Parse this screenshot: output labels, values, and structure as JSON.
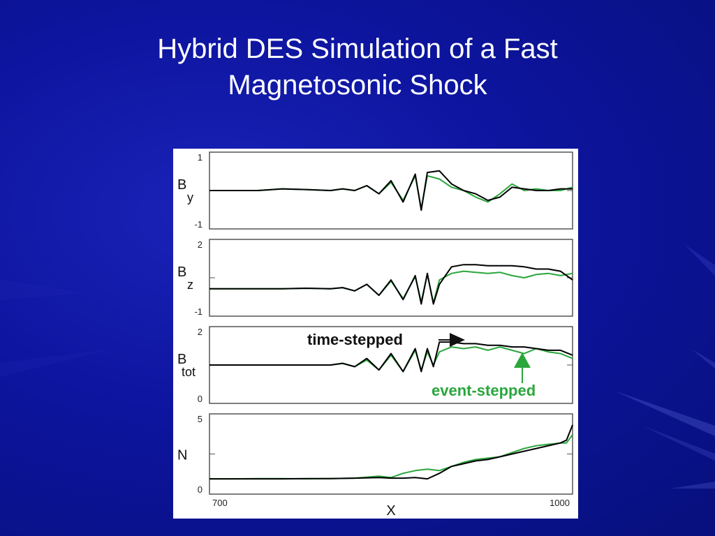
{
  "slide": {
    "title_line1": "Hybrid DES Simulation of a Fast",
    "title_line2": "Magnetosonic Shock"
  },
  "colors": {
    "background": "#0d149e",
    "time_stepped": "#000000",
    "event_stepped": "#2aa63c"
  },
  "chart_data": {
    "type": "line",
    "xlabel": "X",
    "xlim": [
      700,
      1000
    ],
    "x_ticks": [
      "700",
      "1000"
    ],
    "panels": [
      {
        "id": "by",
        "ylabel_main": "B",
        "ylabel_sub": "y",
        "ylim": [
          -1,
          1
        ],
        "y_ticks": [
          "1",
          "-1"
        ],
        "series": [
          {
            "x": [
              700,
              720,
              740,
              760,
              780,
              800,
              810,
              820,
              830,
              840,
              850,
              860,
              870,
              875,
              880,
              890,
              900,
              910,
              920,
              930,
              940,
              950,
              960,
              970,
              980,
              990,
              1000
            ],
            "y": [
              0,
              0,
              0,
              0.05,
              0.03,
              0,
              0.05,
              0,
              0.15,
              -0.1,
              0.3,
              -0.35,
              0.5,
              -0.6,
              0.55,
              0.6,
              0.2,
              0,
              -0.1,
              -0.3,
              -0.2,
              0.1,
              0.05,
              0,
              0,
              0.05,
              0.05
            ]
          },
          {
            "x": [
              700,
              720,
              740,
              760,
              780,
              800,
              810,
              820,
              830,
              840,
              850,
              860,
              870,
              875,
              880,
              890,
              900,
              910,
              920,
              930,
              940,
              950,
              960,
              970,
              980,
              990,
              1000
            ],
            "y": [
              0,
              0,
              0,
              0.05,
              0.03,
              0,
              0.05,
              0,
              0.15,
              -0.1,
              0.25,
              -0.3,
              0.45,
              -0.55,
              0.45,
              0.35,
              0.1,
              0,
              -0.2,
              -0.35,
              -0.1,
              0.2,
              0,
              0.05,
              0,
              0,
              0.1
            ]
          }
        ]
      },
      {
        "id": "bz",
        "ylabel_main": "B",
        "ylabel_sub": "z",
        "ylim": [
          -1,
          2
        ],
        "y_ticks": [
          "2",
          "-1"
        ],
        "series": [
          {
            "x": [
              700,
              720,
              740,
              760,
              780,
              800,
              810,
              820,
              830,
              840,
              850,
              860,
              870,
              875,
              880,
              885,
              890,
              900,
              910,
              920,
              930,
              940,
              950,
              960,
              970,
              980,
              990,
              1000
            ],
            "y": [
              0,
              0,
              0,
              0,
              0.02,
              0,
              0.05,
              -0.1,
              0.2,
              -0.3,
              0.4,
              -0.5,
              0.6,
              -0.7,
              0.7,
              -0.7,
              0.2,
              1.0,
              1.1,
              1.1,
              1.05,
              1.05,
              1.05,
              1.0,
              0.9,
              0.9,
              0.8,
              0.4
            ]
          },
          {
            "x": [
              700,
              720,
              740,
              760,
              780,
              800,
              810,
              820,
              830,
              840,
              850,
              860,
              870,
              875,
              880,
              885,
              890,
              900,
              910,
              920,
              930,
              940,
              950,
              960,
              970,
              980,
              990,
              1000
            ],
            "y": [
              0,
              0,
              0,
              0,
              0.02,
              0,
              0.05,
              -0.1,
              0.2,
              -0.3,
              0.35,
              -0.45,
              0.55,
              -0.6,
              0.65,
              -0.65,
              0.4,
              0.7,
              0.8,
              0.75,
              0.7,
              0.75,
              0.6,
              0.5,
              0.65,
              0.7,
              0.6,
              0.7
            ]
          }
        ]
      },
      {
        "id": "btot",
        "ylabel_main": "B",
        "ylabel_sub": "tot",
        "ylim": [
          0,
          2
        ],
        "y_ticks": [
          "2",
          "0"
        ],
        "series": [
          {
            "x": [
              700,
              720,
              740,
              760,
              780,
              800,
              810,
              820,
              830,
              840,
              850,
              860,
              870,
              875,
              880,
              885,
              890,
              900,
              910,
              920,
              930,
              940,
              950,
              960,
              970,
              980,
              990,
              1000
            ],
            "y": [
              1,
              1,
              1,
              1,
              1,
              1,
              1.05,
              0.95,
              1.2,
              0.85,
              1.35,
              0.8,
              1.5,
              0.8,
              1.5,
              0.95,
              1.7,
              1.7,
              1.65,
              1.65,
              1.6,
              1.6,
              1.55,
              1.55,
              1.5,
              1.45,
              1.45,
              1.3
            ]
          },
          {
            "x": [
              700,
              720,
              740,
              760,
              780,
              800,
              810,
              820,
              830,
              840,
              850,
              860,
              870,
              875,
              880,
              885,
              890,
              900,
              910,
              920,
              930,
              940,
              950,
              960,
              970,
              980,
              990,
              1000
            ],
            "y": [
              1,
              1,
              1,
              1,
              1,
              1,
              1.05,
              0.95,
              1.15,
              0.85,
              1.3,
              0.8,
              1.45,
              0.85,
              1.4,
              1.0,
              1.4,
              1.55,
              1.5,
              1.55,
              1.45,
              1.55,
              1.45,
              1.35,
              1.5,
              1.4,
              1.35,
              1.2
            ]
          }
        ]
      },
      {
        "id": "n",
        "ylabel_main": "N",
        "ylabel_sub": "",
        "ylim": [
          0,
          5
        ],
        "y_ticks": [
          "5",
          "0"
        ],
        "series": [
          {
            "x": [
              700,
              720,
              740,
              760,
              780,
              800,
              820,
              840,
              850,
              860,
              870,
              880,
              890,
              900,
              910,
              920,
              930,
              940,
              950,
              960,
              970,
              980,
              990,
              995,
              1000
            ],
            "y": [
              0.7,
              0.7,
              0.7,
              0.7,
              0.72,
              0.72,
              0.75,
              0.8,
              0.75,
              0.75,
              0.8,
              0.7,
              1.1,
              1.6,
              1.8,
              2.0,
              2.1,
              2.3,
              2.5,
              2.7,
              2.9,
              3.1,
              3.3,
              3.5,
              4.6
            ]
          },
          {
            "x": [
              700,
              720,
              740,
              760,
              780,
              800,
              820,
              840,
              850,
              860,
              870,
              880,
              890,
              900,
              910,
              920,
              930,
              940,
              950,
              960,
              970,
              980,
              990,
              995,
              1000
            ],
            "y": [
              0.7,
              0.7,
              0.72,
              0.72,
              0.7,
              0.72,
              0.75,
              0.9,
              0.8,
              1.1,
              1.3,
              1.4,
              1.3,
              1.6,
              1.9,
              2.1,
              2.2,
              2.3,
              2.6,
              2.9,
              3.1,
              3.2,
              3.3,
              3.3,
              3.9
            ]
          }
        ]
      }
    ],
    "annotations": {
      "time_stepped_label": "time-stepped",
      "event_stepped_label": "event-stepped"
    }
  }
}
